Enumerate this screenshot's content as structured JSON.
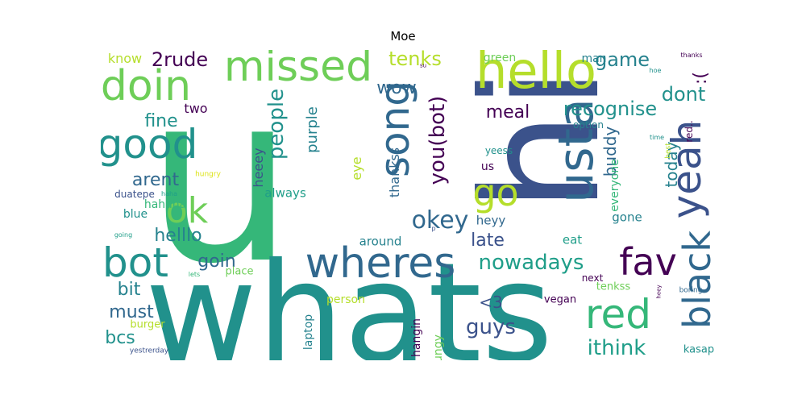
{
  "title": "Moe",
  "palette": {
    "c0": "#440154",
    "c1": "#3b528b",
    "c2": "#31688e",
    "c3": "#26828e",
    "c4": "#21918c",
    "c5": "#1f9e89",
    "c6": "#35b779",
    "c7": "#6ece58",
    "c8": "#b5de2b",
    "c9": "#dde318"
  },
  "words": [
    {
      "text": "u",
      "weight": 100,
      "color": "c6",
      "rotated": false
    },
    {
      "text": "hi",
      "weight": 98,
      "color": "c1",
      "rotated": true
    },
    {
      "text": "whats",
      "weight": 85,
      "color": "c4",
      "rotated": false
    },
    {
      "text": "hello",
      "weight": 38,
      "color": "c8",
      "rotated": false
    },
    {
      "text": "missed",
      "weight": 30,
      "color": "c7",
      "rotated": false
    },
    {
      "text": "doin",
      "weight": 30,
      "color": "c7",
      "rotated": false
    },
    {
      "text": "good",
      "weight": 30,
      "color": "c4",
      "rotated": false
    },
    {
      "text": "song",
      "weight": 30,
      "color": "c2",
      "rotated": true
    },
    {
      "text": "usta",
      "weight": 34,
      "color": "c2",
      "rotated": true
    },
    {
      "text": "yeah",
      "weight": 34,
      "color": "c1",
      "rotated": true
    },
    {
      "text": "wheres",
      "weight": 30,
      "color": "c2",
      "rotated": false
    },
    {
      "text": "bot",
      "weight": 30,
      "color": "c4",
      "rotated": false
    },
    {
      "text": "ok",
      "weight": 26,
      "color": "c7",
      "rotated": false
    },
    {
      "text": "go",
      "weight": 27,
      "color": "c8",
      "rotated": false
    },
    {
      "text": "fav",
      "weight": 27,
      "color": "c0",
      "rotated": false
    },
    {
      "text": "red",
      "weight": 30,
      "color": "c6",
      "rotated": false
    },
    {
      "text": "black",
      "weight": 30,
      "color": "c2",
      "rotated": true
    },
    {
      "text": "okey",
      "weight": 20,
      "color": "c2",
      "rotated": false
    },
    {
      "text": "you(bot)",
      "weight": 16,
      "color": "c0",
      "rotated": true
    },
    {
      "text": "people",
      "weight": 16,
      "color": "c4",
      "rotated": true
    },
    {
      "text": "nowadays",
      "weight": 16,
      "color": "c5",
      "rotated": false
    },
    {
      "text": "recognise",
      "weight": 14,
      "color": "c4",
      "rotated": false
    },
    {
      "text": "game",
      "weight": 14,
      "color": "c3",
      "rotated": false
    },
    {
      "text": "dont",
      "weight": 14,
      "color": "c4",
      "rotated": false
    },
    {
      "text": ":(",
      "weight": 14,
      "color": "c0",
      "rotated": true
    },
    {
      "text": "tenks",
      "weight": 14,
      "color": "c8",
      "rotated": false
    },
    {
      "text": "2rude",
      "weight": 14,
      "color": "c0",
      "rotated": false
    },
    {
      "text": "wow",
      "weight": 12,
      "color": "c2",
      "rotated": false
    },
    {
      "text": "meal",
      "weight": 12,
      "color": "c0",
      "rotated": false
    },
    {
      "text": "today",
      "weight": 12,
      "color": "c3",
      "rotated": true
    },
    {
      "text": "buddy",
      "weight": 12,
      "color": "c2",
      "rotated": true
    },
    {
      "text": "fine",
      "weight": 12,
      "color": "c4",
      "rotated": false
    },
    {
      "text": "arent",
      "weight": 12,
      "color": "c2",
      "rotated": false
    },
    {
      "text": "helllo",
      "weight": 12,
      "color": "c3",
      "rotated": false
    },
    {
      "text": "bit",
      "weight": 12,
      "color": "c3",
      "rotated": false
    },
    {
      "text": "must",
      "weight": 12,
      "color": "c2",
      "rotated": false
    },
    {
      "text": "bcs",
      "weight": 12,
      "color": "c4",
      "rotated": false
    },
    {
      "text": "goin",
      "weight": 12,
      "color": "c2",
      "rotated": false
    },
    {
      "text": "late",
      "weight": 12,
      "color": "c1",
      "rotated": false
    },
    {
      "text": "guys",
      "weight": 13,
      "color": "c1",
      "rotated": false
    },
    {
      "text": "ithink",
      "weight": 13,
      "color": "c5",
      "rotated": false
    },
    {
      "text": "purple",
      "weight": 11,
      "color": "c3",
      "rotated": true
    },
    {
      "text": "<3",
      "weight": 11,
      "color": "c1",
      "rotated": false
    },
    {
      "text": "thankss",
      "weight": 10,
      "color": "c2",
      "rotated": true
    },
    {
      "text": "eye",
      "weight": 10,
      "color": "c8",
      "rotated": true
    },
    {
      "text": "heeey",
      "weight": 10,
      "color": "c1",
      "rotated": true
    },
    {
      "text": "always",
      "weight": 9,
      "color": "c5",
      "rotated": false
    },
    {
      "text": "around",
      "weight": 9,
      "color": "c3",
      "rotated": false
    },
    {
      "text": "heyy",
      "weight": 9,
      "color": "c2",
      "rotated": false
    },
    {
      "text": "gone",
      "weight": 9,
      "color": "c3",
      "rotated": false
    },
    {
      "text": "everyone",
      "weight": 9,
      "color": "c6",
      "rotated": true
    },
    {
      "text": "eat",
      "weight": 9,
      "color": "c5",
      "rotated": false
    },
    {
      "text": "two",
      "weight": 10,
      "color": "c0",
      "rotated": false
    },
    {
      "text": "hahaha",
      "weight": 9,
      "color": "c6",
      "rotated": false
    },
    {
      "text": "know",
      "weight": 10,
      "color": "c8",
      "rotated": false
    },
    {
      "text": "green",
      "weight": 9,
      "color": "c7",
      "rotated": false
    },
    {
      "text": "man",
      "weight": 8,
      "color": "c3",
      "rotated": false
    },
    {
      "text": "option",
      "weight": 7,
      "color": "c3",
      "rotated": false
    },
    {
      "text": "yeess",
      "weight": 7,
      "color": "c4",
      "rotated": false
    },
    {
      "text": "us",
      "weight": 8,
      "color": "c0",
      "rotated": false
    },
    {
      "text": "blue",
      "weight": 9,
      "color": "c4",
      "rotated": false
    },
    {
      "text": "duatepe",
      "weight": 8,
      "color": "c1",
      "rotated": false
    },
    {
      "text": "place",
      "weight": 8,
      "color": "c7",
      "rotated": false
    },
    {
      "text": "person",
      "weight": 8,
      "color": "c8",
      "rotated": false
    },
    {
      "text": "laptop",
      "weight": 9,
      "color": "c3",
      "rotated": true
    },
    {
      "text": "hangin",
      "weight": 9,
      "color": "c0",
      "rotated": true
    },
    {
      "text": "hungy",
      "weight": 9,
      "color": "c7",
      "rotated": true
    },
    {
      "text": "burger",
      "weight": 8,
      "color": "c8",
      "rotated": false
    },
    {
      "text": "vegan",
      "weight": 8,
      "color": "c0",
      "rotated": false
    },
    {
      "text": "tenkss",
      "weight": 8,
      "color": "c7",
      "rotated": false
    },
    {
      "text": "next",
      "weight": 7,
      "color": "c0",
      "rotated": false
    },
    {
      "text": "kasap",
      "weight": 8,
      "color": "c4",
      "rotated": false
    },
    {
      "text": "boring",
      "weight": 6,
      "color": "c2",
      "rotated": false
    },
    {
      "text": "red..",
      "weight": 8,
      "color": "c0",
      "rotated": true
    },
    {
      "text": "best",
      "weight": 6,
      "color": "c8",
      "rotated": true
    },
    {
      "text": "time",
      "weight": 5,
      "color": "c4",
      "rotated": false
    },
    {
      "text": "thanks",
      "weight": 5,
      "color": "c0",
      "rotated": false
    },
    {
      "text": "hoe",
      "weight": 5,
      "color": "c4",
      "rotated": false
    },
    {
      "text": "heey",
      "weight": 4,
      "color": "c0",
      "rotated": true
    },
    {
      "text": "su",
      "weight": 4,
      "color": "c0",
      "rotated": false
    },
    {
      "text": "p",
      "weight": 4,
      "color": "c1",
      "rotated": false
    },
    {
      "text": "hungry",
      "weight": 5,
      "color": "c9",
      "rotated": false
    },
    {
      "text": "haha",
      "weight": 5,
      "color": "c5",
      "rotated": false
    },
    {
      "text": "going",
      "weight": 5,
      "color": "c5",
      "rotated": false
    },
    {
      "text": "lets",
      "weight": 5,
      "color": "c6",
      "rotated": false
    },
    {
      "text": "yestrerday",
      "weight": 5,
      "color": "c1",
      "rotated": false
    }
  ]
}
